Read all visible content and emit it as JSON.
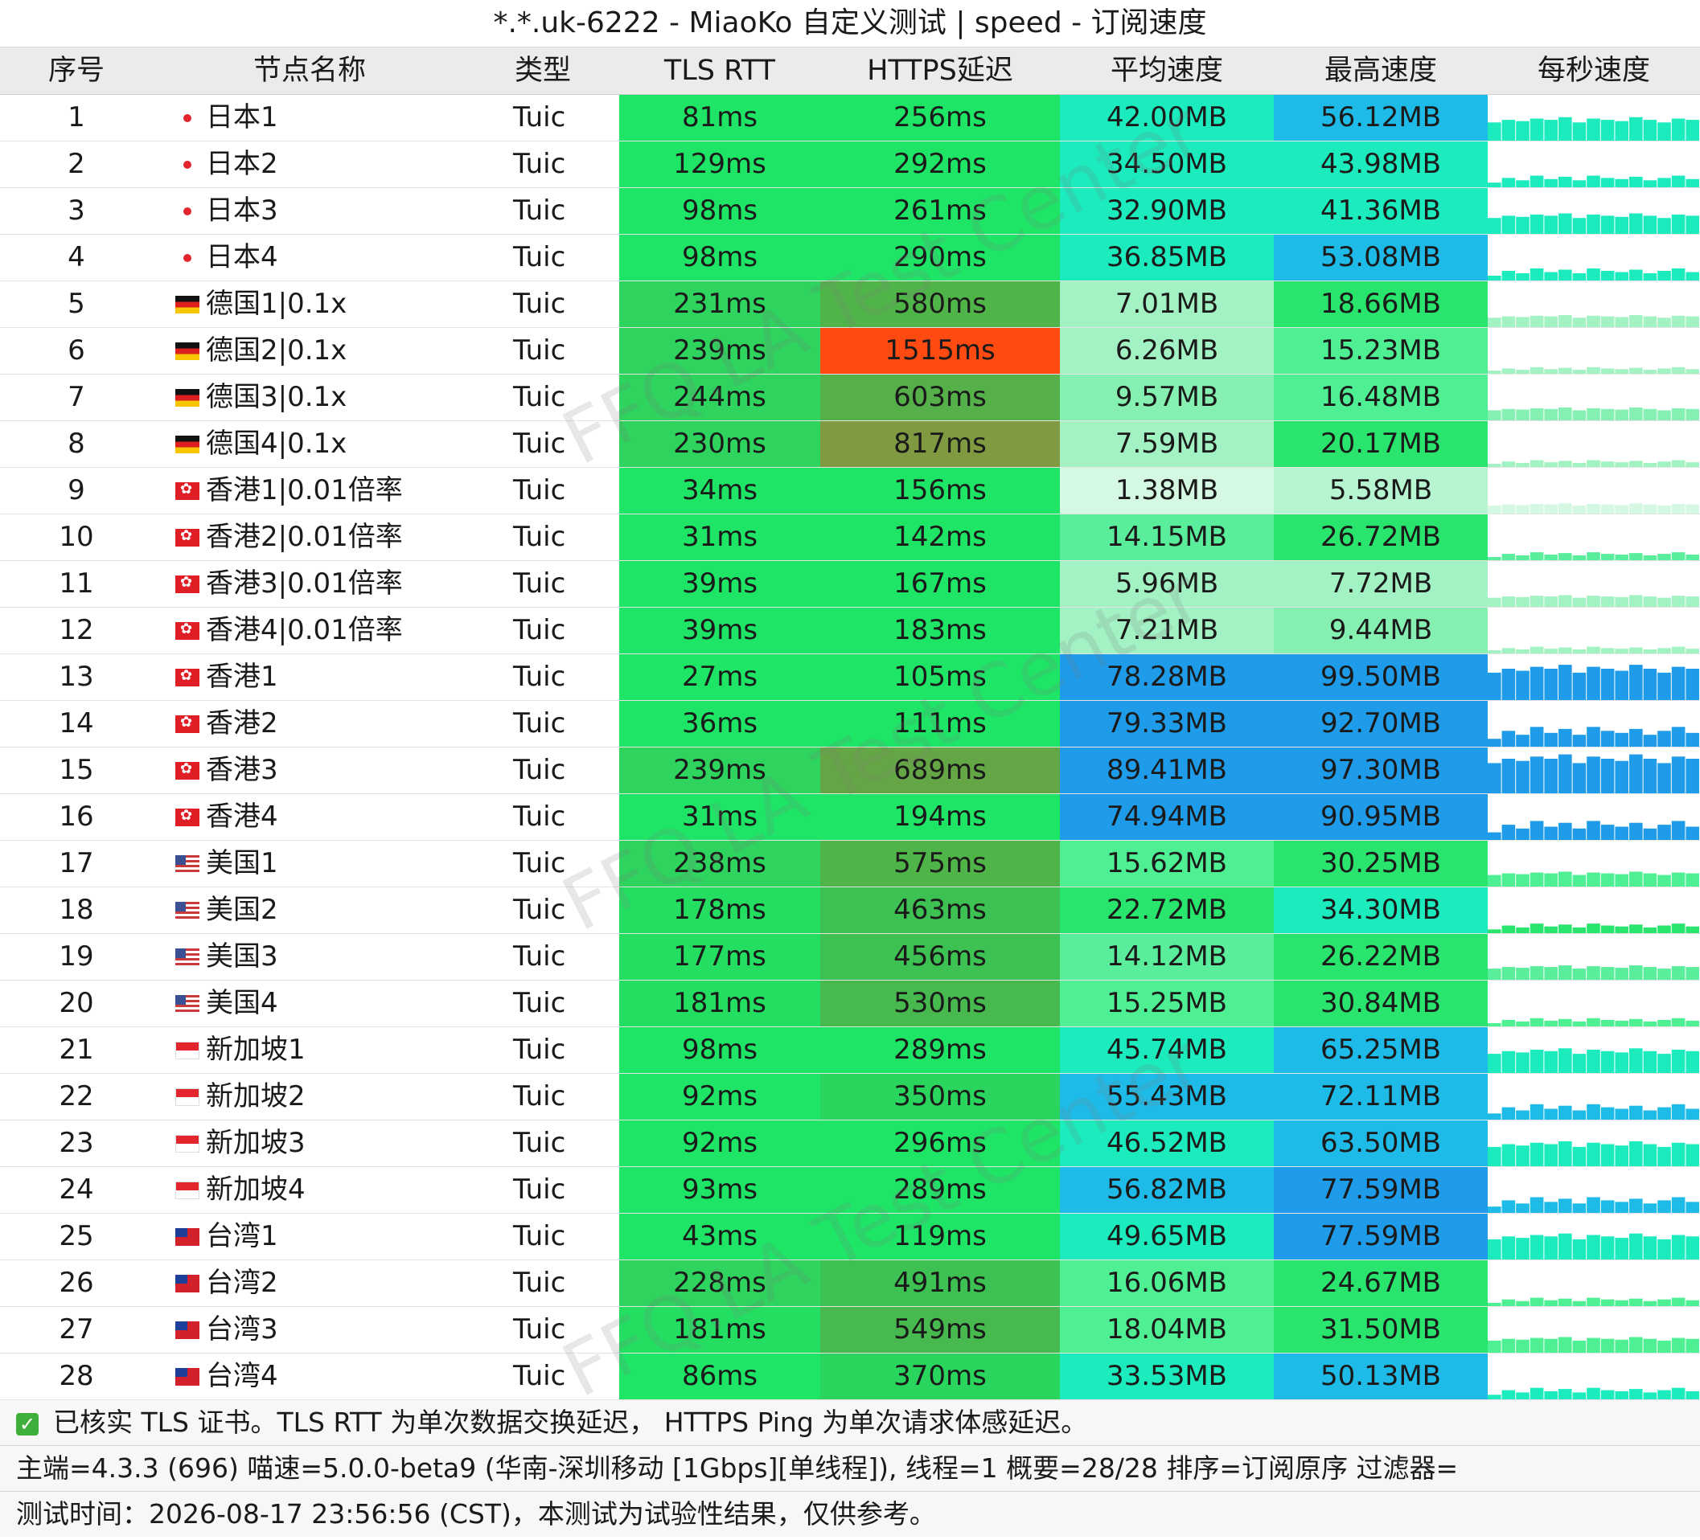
{
  "title": "*.*.uk-6222 - MiaoKo 自定义测试 | speed - 订阅速度",
  "headers": {
    "no": "序号",
    "name": "节点名称",
    "type": "类型",
    "tls": "TLS RTT",
    "https": "HTTPS延迟",
    "avg": "平均速度",
    "max": "最高速度",
    "spark": "每秒速度"
  },
  "rows": [
    {
      "no": "1",
      "flag": "jp",
      "name": "日本1",
      "type": "Tuic",
      "tls": "81ms",
      "https": "256ms",
      "avg": "42.00MB",
      "max": "56.12MB",
      "tls_color": "#1fe567",
      "https_color": "#1fe567",
      "avg_color": "#1bebbd",
      "max_color": "#1ebbe8"
    },
    {
      "no": "2",
      "flag": "jp",
      "name": "日本2",
      "type": "Tuic",
      "tls": "129ms",
      "https": "292ms",
      "avg": "34.50MB",
      "max": "43.98MB",
      "tls_color": "#1fe567",
      "https_color": "#1fe567",
      "avg_color": "#1bebbd",
      "max_color": "#1bebbd"
    },
    {
      "no": "3",
      "flag": "jp",
      "name": "日本3",
      "type": "Tuic",
      "tls": "98ms",
      "https": "261ms",
      "avg": "32.90MB",
      "max": "41.36MB",
      "tls_color": "#1fe567",
      "https_color": "#1fe567",
      "avg_color": "#1bebbd",
      "max_color": "#1bebbd"
    },
    {
      "no": "4",
      "flag": "jp",
      "name": "日本4",
      "type": "Tuic",
      "tls": "98ms",
      "https": "290ms",
      "avg": "36.85MB",
      "max": "53.08MB",
      "tls_color": "#1fe567",
      "https_color": "#1fe567",
      "avg_color": "#1bebbd",
      "max_color": "#1ebbe8"
    },
    {
      "no": "5",
      "flag": "de",
      "name": "德国1|0.1x",
      "type": "Tuic",
      "tls": "231ms",
      "https": "580ms",
      "avg": "7.01MB",
      "max": "18.66MB",
      "tls_color": "#2ed45e",
      "https_color": "#50b548",
      "avg_color": "#a3f2c4",
      "max_color": "#29e56e"
    },
    {
      "no": "6",
      "flag": "de",
      "name": "德国2|0.1x",
      "type": "Tuic",
      "tls": "239ms",
      "https": "1515ms",
      "avg": "6.26MB",
      "max": "15.23MB",
      "tls_color": "#2ed45e",
      "https_color": "#ff4a12",
      "avg_color": "#a3f2c4",
      "max_color": "#4fef93"
    },
    {
      "no": "7",
      "flag": "de",
      "name": "德国3|0.1x",
      "type": "Tuic",
      "tls": "244ms",
      "https": "603ms",
      "avg": "9.57MB",
      "max": "16.48MB",
      "tls_color": "#2ed45e",
      "https_color": "#55b04a",
      "avg_color": "#86f0b2",
      "max_color": "#4fef93"
    },
    {
      "no": "8",
      "flag": "de",
      "name": "德国4|0.1x",
      "type": "Tuic",
      "tls": "230ms",
      "https": "817ms",
      "avg": "7.59MB",
      "max": "20.17MB",
      "tls_color": "#2ed45e",
      "https_color": "#7f9a40",
      "avg_color": "#a3f2c4",
      "max_color": "#29e56e"
    },
    {
      "no": "9",
      "flag": "hk",
      "name": "香港1|0.01倍率",
      "type": "Tuic",
      "tls": "34ms",
      "https": "156ms",
      "avg": "1.38MB",
      "max": "5.58MB",
      "tls_color": "#1fe567",
      "https_color": "#1fe567",
      "avg_color": "#d5f8e2",
      "max_color": "#b6f5cf"
    },
    {
      "no": "10",
      "flag": "hk",
      "name": "香港2|0.01倍率",
      "type": "Tuic",
      "tls": "31ms",
      "https": "142ms",
      "avg": "14.15MB",
      "max": "26.72MB",
      "tls_color": "#1fe567",
      "https_color": "#1fe567",
      "avg_color": "#5aee9c",
      "max_color": "#29e56e"
    },
    {
      "no": "11",
      "flag": "hk",
      "name": "香港3|0.01倍率",
      "type": "Tuic",
      "tls": "39ms",
      "https": "167ms",
      "avg": "5.96MB",
      "max": "7.72MB",
      "tls_color": "#1fe567",
      "https_color": "#1fe567",
      "avg_color": "#a3f2c4",
      "max_color": "#a3f2c4"
    },
    {
      "no": "12",
      "flag": "hk",
      "name": "香港4|0.01倍率",
      "type": "Tuic",
      "tls": "39ms",
      "https": "183ms",
      "avg": "7.21MB",
      "max": "9.44MB",
      "tls_color": "#1fe567",
      "https_color": "#1fe567",
      "avg_color": "#a3f2c4",
      "max_color": "#86f0b2"
    },
    {
      "no": "13",
      "flag": "hk",
      "name": "香港1",
      "type": "Tuic",
      "tls": "27ms",
      "https": "105ms",
      "avg": "78.28MB",
      "max": "99.50MB",
      "tls_color": "#1fe567",
      "https_color": "#1fe567",
      "avg_color": "#1e9be9",
      "max_color": "#1e9be9"
    },
    {
      "no": "14",
      "flag": "hk",
      "name": "香港2",
      "type": "Tuic",
      "tls": "36ms",
      "https": "111ms",
      "avg": "79.33MB",
      "max": "92.70MB",
      "tls_color": "#1fe567",
      "https_color": "#1fe567",
      "avg_color": "#1e9be9",
      "max_color": "#1e9be9"
    },
    {
      "no": "15",
      "flag": "hk",
      "name": "香港3",
      "type": "Tuic",
      "tls": "239ms",
      "https": "689ms",
      "avg": "89.41MB",
      "max": "97.30MB",
      "tls_color": "#2ed45e",
      "https_color": "#64a645",
      "avg_color": "#1e9be9",
      "max_color": "#1e9be9"
    },
    {
      "no": "16",
      "flag": "hk",
      "name": "香港4",
      "type": "Tuic",
      "tls": "31ms",
      "https": "194ms",
      "avg": "74.94MB",
      "max": "90.95MB",
      "tls_color": "#1fe567",
      "https_color": "#1fe567",
      "avg_color": "#1e9be9",
      "max_color": "#1e9be9"
    },
    {
      "no": "17",
      "flag": "us",
      "name": "美国1",
      "type": "Tuic",
      "tls": "238ms",
      "https": "575ms",
      "avg": "15.62MB",
      "max": "30.25MB",
      "tls_color": "#2ed45e",
      "https_color": "#50b548",
      "avg_color": "#4fef93",
      "max_color": "#29e56e"
    },
    {
      "no": "18",
      "flag": "us",
      "name": "美国2",
      "type": "Tuic",
      "tls": "178ms",
      "https": "463ms",
      "avg": "22.72MB",
      "max": "34.30MB",
      "tls_color": "#24de62",
      "https_color": "#3dc152",
      "avg_color": "#29e56e",
      "max_color": "#1bebbd"
    },
    {
      "no": "19",
      "flag": "us",
      "name": "美国3",
      "type": "Tuic",
      "tls": "177ms",
      "https": "456ms",
      "avg": "14.12MB",
      "max": "26.22MB",
      "tls_color": "#24de62",
      "https_color": "#3dc152",
      "avg_color": "#5aee9c",
      "max_color": "#29e56e"
    },
    {
      "no": "20",
      "flag": "us",
      "name": "美国4",
      "type": "Tuic",
      "tls": "181ms",
      "https": "530ms",
      "avg": "15.25MB",
      "max": "30.84MB",
      "tls_color": "#24de62",
      "https_color": "#47b94e",
      "avg_color": "#4fef93",
      "max_color": "#29e56e"
    },
    {
      "no": "21",
      "flag": "sg",
      "name": "新加坡1",
      "type": "Tuic",
      "tls": "98ms",
      "https": "289ms",
      "avg": "45.74MB",
      "max": "65.25MB",
      "tls_color": "#1fe567",
      "https_color": "#1fe567",
      "avg_color": "#1bebbd",
      "max_color": "#1ebbe8"
    },
    {
      "no": "22",
      "flag": "sg",
      "name": "新加坡2",
      "type": "Tuic",
      "tls": "92ms",
      "https": "350ms",
      "avg": "55.43MB",
      "max": "72.11MB",
      "tls_color": "#1fe567",
      "https_color": "#2ad55d",
      "avg_color": "#1ebbe8",
      "max_color": "#1ebbe8"
    },
    {
      "no": "23",
      "flag": "sg",
      "name": "新加坡3",
      "type": "Tuic",
      "tls": "92ms",
      "https": "296ms",
      "avg": "46.52MB",
      "max": "63.50MB",
      "tls_color": "#1fe567",
      "https_color": "#1fe567",
      "avg_color": "#1bebbd",
      "max_color": "#1ebbe8"
    },
    {
      "no": "24",
      "flag": "sg",
      "name": "新加坡4",
      "type": "Tuic",
      "tls": "93ms",
      "https": "289ms",
      "avg": "56.82MB",
      "max": "77.59MB",
      "tls_color": "#1fe567",
      "https_color": "#1fe567",
      "avg_color": "#1ebbe8",
      "max_color": "#1e9be9"
    },
    {
      "no": "25",
      "flag": "tw",
      "name": "台湾1",
      "type": "Tuic",
      "tls": "43ms",
      "https": "119ms",
      "avg": "49.65MB",
      "max": "77.59MB",
      "tls_color": "#1fe567",
      "https_color": "#1fe567",
      "avg_color": "#1bebbd",
      "max_color": "#1e9be9"
    },
    {
      "no": "26",
      "flag": "tw",
      "name": "台湾2",
      "type": "Tuic",
      "tls": "228ms",
      "https": "491ms",
      "avg": "16.06MB",
      "max": "24.67MB",
      "tls_color": "#2ed45e",
      "https_color": "#3dc152",
      "avg_color": "#4fef93",
      "max_color": "#29e56e"
    },
    {
      "no": "27",
      "flag": "tw",
      "name": "台湾3",
      "type": "Tuic",
      "tls": "181ms",
      "https": "549ms",
      "avg": "18.04MB",
      "max": "31.50MB",
      "tls_color": "#24de62",
      "https_color": "#47b94e",
      "avg_color": "#4fef93",
      "max_color": "#29e56e"
    },
    {
      "no": "28",
      "flag": "tw",
      "name": "台湾4",
      "type": "Tuic",
      "tls": "86ms",
      "https": "370ms",
      "avg": "33.53MB",
      "max": "50.13MB",
      "tls_color": "#1fe567",
      "https_color": "#2ad55d",
      "avg_color": "#1bebbd",
      "max_color": "#1ebbe8"
    }
  ],
  "footer": {
    "note": "已核实 TLS 证书。TLS RTT 为单次数据交换延迟， HTTPS Ping 为单次请求体感延迟。",
    "info": "主端=4.3.3 (696) 喵速=5.0.0-beta9 (华南-深圳移动 [1Gbps][单线程]), 线程=1 概要=28/28 排序=订阅原序 过滤器=",
    "time": "测试时间：2026-08-17 23:56:56 (CST)，本测试为试验性结果，仅供参考。"
  },
  "watermark": "FFQ.LA Test Center"
}
